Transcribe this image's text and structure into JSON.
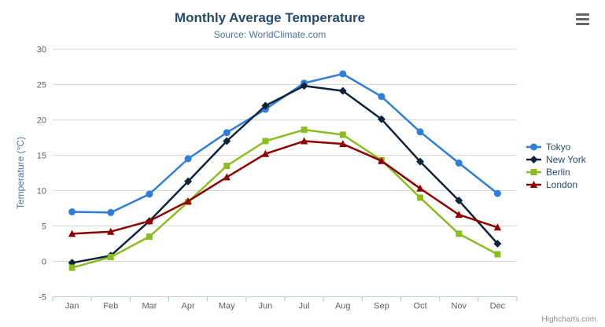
{
  "chart_data": {
    "type": "line",
    "title": "Monthly Average Temperature",
    "subtitle": "Source: WorldClimate.com",
    "xlabel": "",
    "ylabel": "Temperature (°C)",
    "categories": [
      "Jan",
      "Feb",
      "Mar",
      "Apr",
      "May",
      "Jun",
      "Jul",
      "Aug",
      "Sep",
      "Oct",
      "Nov",
      "Dec"
    ],
    "ylim": [
      -5,
      30
    ],
    "ytick_interval": 5,
    "grid": true,
    "legend_position": "right-middle-vertical",
    "series": [
      {
        "name": "Tokyo",
        "color": "#2f7ed8",
        "marker": "circle",
        "values": [
          7.0,
          6.9,
          9.5,
          14.5,
          18.2,
          21.5,
          25.2,
          26.5,
          23.3,
          18.3,
          13.9,
          9.6
        ]
      },
      {
        "name": "New York",
        "color": "#0d233a",
        "marker": "diamond",
        "values": [
          -0.2,
          0.8,
          5.7,
          11.3,
          17.0,
          22.0,
          24.8,
          24.1,
          20.1,
          14.1,
          8.6,
          2.5
        ]
      },
      {
        "name": "Berlin",
        "color": "#8bbc21",
        "marker": "square",
        "values": [
          -0.9,
          0.6,
          3.5,
          8.4,
          13.5,
          17.0,
          18.6,
          17.9,
          14.3,
          9.0,
          3.9,
          1.0
        ]
      },
      {
        "name": "London",
        "color": "#910000",
        "marker": "triangle",
        "values": [
          3.9,
          4.2,
          5.7,
          8.5,
          11.9,
          15.2,
          17.0,
          16.6,
          14.2,
          10.3,
          6.6,
          4.8
        ]
      }
    ]
  },
  "credit": {
    "label": "Highcharts.com"
  },
  "export_menu": {
    "icon": "hamburger-icon"
  },
  "colors": {
    "background": "#ffffff",
    "title": "#274b6d",
    "subtitle": "#4d759e",
    "axis_label": "#606060",
    "axis_title": "#4d759e",
    "gridline": "#d8d8d8",
    "axis_line": "#c0d0e0",
    "tick": "#b4c2d0",
    "legend_text": "#274b6d",
    "credit": "#909090",
    "menu_icon": "#666666"
  }
}
